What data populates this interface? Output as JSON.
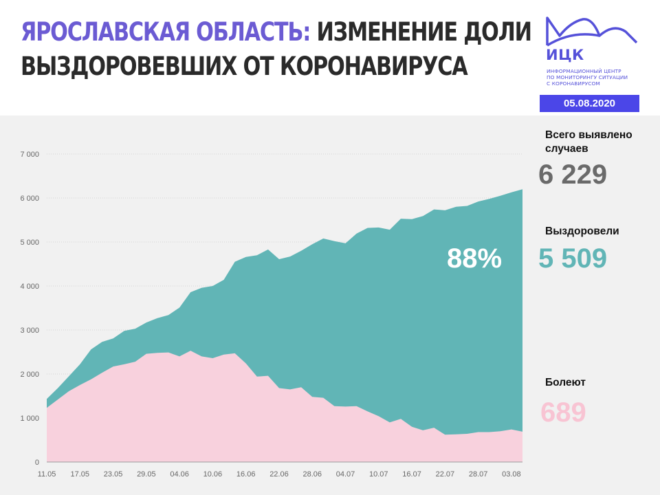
{
  "header": {
    "title_region": "ЯРОСЛАВСКАЯ ОБЛАСТЬ:",
    "title_line1_rest": " ИЗМЕНЕНИЕ ДОЛИ",
    "title_line2": "ВЫЗДОРОВЕВШИХ ОТ КОРОНАВИРУСА",
    "logo_name": "ИЦК",
    "logo_subtitle_lines": [
      "ИНФОРМАЦИОННЫЙ ЦЕНТР",
      "ПО МОНИТОРИНГУ СИТУАЦИИ",
      "С КОРОНАВИРУСОМ"
    ],
    "date": "05.08.2020"
  },
  "stats": {
    "total_label": "Всего выявлено случаев",
    "total_value": "6 229",
    "recovered_label": "Выздоровели",
    "recovered_value": "5 509",
    "recovered_share": "88%",
    "sick_label": "Болеют",
    "sick_value": "689"
  },
  "colors": {
    "title_accent": "#6b5bd3",
    "brand": "#4b46e8",
    "recovered": "#61b5b6",
    "sick": "#f8d1dd",
    "total_text": "#6a6a6a",
    "panel_bg": "#f1f1f1"
  },
  "chart_data": {
    "type": "area",
    "x_tick_labels": [
      "11.05",
      "17.05",
      "23.05",
      "29.05",
      "04.06",
      "10.06",
      "16.06",
      "22.06",
      "28.06",
      "04.07",
      "10.07",
      "16.07",
      "22.07",
      "28.07",
      "03.08"
    ],
    "y_tick_labels": [
      "0",
      "1 000",
      "2 000",
      "3 000",
      "4 000",
      "5 000",
      "6 000",
      "7 000"
    ],
    "ylim": [
      0,
      7000
    ],
    "x_range": [
      "11.05",
      "05.08"
    ],
    "grid": true,
    "x": [
      "11.05",
      "13.05",
      "15.05",
      "17.05",
      "19.05",
      "21.05",
      "23.05",
      "25.05",
      "27.05",
      "29.05",
      "31.05",
      "02.06",
      "04.06",
      "06.06",
      "08.06",
      "10.06",
      "12.06",
      "14.06",
      "16.06",
      "18.06",
      "20.06",
      "22.06",
      "24.06",
      "26.06",
      "28.06",
      "30.06",
      "02.07",
      "04.07",
      "06.07",
      "08.07",
      "10.07",
      "12.07",
      "14.07",
      "16.07",
      "18.07",
      "20.07",
      "22.07",
      "24.07",
      "26.07",
      "28.07",
      "30.07",
      "01.08",
      "03.08",
      "05.08"
    ],
    "series": [
      {
        "name": "Выздоровели",
        "values": [
          205,
          260,
          340,
          470,
          680,
          700,
          640,
          760,
          750,
          710,
          790,
          850,
          1110,
          1330,
          1560,
          1640,
          1700,
          2080,
          2420,
          2760,
          2870,
          2930,
          3020,
          3100,
          3470,
          3620,
          3750,
          3710,
          3920,
          4170,
          4290,
          4380,
          4550,
          4720,
          4870,
          4960,
          5100,
          5170,
          5180,
          5240,
          5300,
          5350,
          5390,
          5509
        ]
      },
      {
        "name": "Болеют",
        "values": [
          1230,
          1420,
          1610,
          1750,
          1880,
          2030,
          2170,
          2220,
          2280,
          2460,
          2480,
          2490,
          2400,
          2530,
          2400,
          2360,
          2440,
          2470,
          2240,
          1940,
          1960,
          1680,
          1650,
          1700,
          1480,
          1460,
          1270,
          1260,
          1270,
          1150,
          1040,
          900,
          980,
          800,
          720,
          780,
          620,
          630,
          640,
          680,
          680,
          700,
          740,
          689
        ]
      }
    ]
  }
}
